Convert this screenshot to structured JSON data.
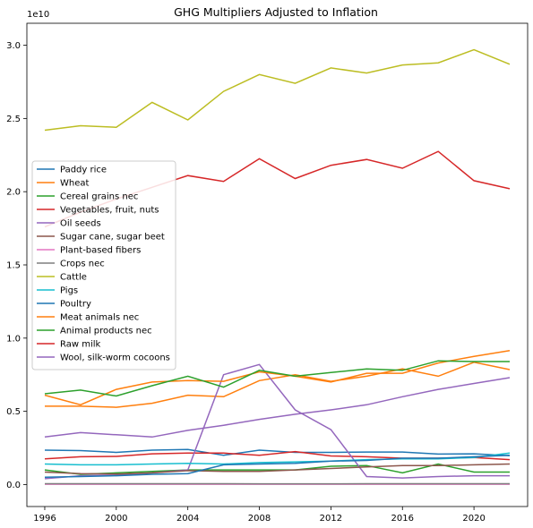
{
  "chart_data": {
    "type": "line",
    "title": "GHG Multipliers Adjusted to Inflation",
    "xlabel": "",
    "ylabel": "",
    "offset_label": "1e10",
    "xlim": [
      1995,
      2023
    ],
    "ylim": [
      -0.15,
      3.15
    ],
    "x_ticks": [
      1996,
      2000,
      2004,
      2008,
      2012,
      2016,
      2020
    ],
    "y_ticks": [
      0.0,
      0.5,
      1.0,
      1.5,
      2.0,
      2.5,
      3.0
    ],
    "y_tick_labels": [
      "0.0",
      "0.5",
      "1.0",
      "1.5",
      "2.0",
      "2.5",
      "3.0"
    ],
    "grid": false,
    "legend_position": "center-left",
    "x": [
      1996,
      1998,
      2000,
      2002,
      2004,
      2006,
      2008,
      2010,
      2012,
      2014,
      2016,
      2018,
      2020,
      2022
    ],
    "series": [
      {
        "name": "Paddy rice",
        "color": "#1f77b4",
        "values": [
          0.235,
          0.232,
          0.22,
          0.235,
          0.24,
          0.2,
          0.235,
          0.22,
          0.22,
          0.222,
          0.222,
          0.208,
          0.21,
          0.198
        ]
      },
      {
        "name": "Wheat",
        "color": "#ff7f0e",
        "values": [
          0.535,
          0.535,
          0.528,
          0.555,
          0.61,
          0.6,
          0.71,
          0.75,
          0.705,
          0.74,
          0.79,
          0.74,
          0.835,
          0.785
        ]
      },
      {
        "name": "Cereal grains nec",
        "color": "#2ca02c",
        "values": [
          0.1,
          0.07,
          0.08,
          0.09,
          0.1,
          0.1,
          0.1,
          0.1,
          0.125,
          0.13,
          0.08,
          0.14,
          0.085,
          0.085
        ]
      },
      {
        "name": "Vegetables, fruit, nuts",
        "color": "#d62728",
        "values": [
          0.175,
          0.19,
          0.192,
          0.21,
          0.215,
          0.215,
          0.2,
          0.225,
          0.195,
          0.19,
          0.18,
          0.18,
          0.185,
          0.17
        ]
      },
      {
        "name": "Oil seeds",
        "color": "#9467bd",
        "values": [
          0.04,
          0.06,
          0.065,
          0.08,
          0.1,
          0.75,
          0.82,
          0.51,
          0.375,
          0.055,
          0.045,
          0.055,
          0.06,
          0.06
        ]
      },
      {
        "name": "Sugar cane, sugar beet",
        "color": "#8c564b",
        "values": [
          0.085,
          0.075,
          0.072,
          0.08,
          0.095,
          0.09,
          0.09,
          0.1,
          0.11,
          0.12,
          0.13,
          0.13,
          0.135,
          0.14
        ]
      },
      {
        "name": "Plant-based fibers",
        "color": "#e377c2",
        "values": [
          0.002,
          0.002,
          0.002,
          0.002,
          0.002,
          0.002,
          0.002,
          0.002,
          0.002,
          0.002,
          0.002,
          0.002,
          0.002,
          0.002
        ]
      },
      {
        "name": "Crops nec",
        "color": "#7f7f7f",
        "values": [
          0.006,
          0.006,
          0.006,
          0.006,
          0.006,
          0.006,
          0.005,
          0.005,
          0.005,
          0.006,
          0.006,
          0.006,
          0.006,
          0.006
        ]
      },
      {
        "name": "Cattle",
        "color": "#bcbd22",
        "values": [
          2.42,
          2.45,
          2.44,
          2.61,
          2.49,
          2.685,
          2.8,
          2.74,
          2.845,
          2.81,
          2.865,
          2.88,
          2.97,
          2.87
        ]
      },
      {
        "name": "Pigs",
        "color": "#17becf",
        "values": [
          0.14,
          0.135,
          0.135,
          0.14,
          0.145,
          0.14,
          0.15,
          0.155,
          0.16,
          0.17,
          0.175,
          0.175,
          0.185,
          0.215
        ]
      },
      {
        "name": "Poultry",
        "color": "#1f77b4",
        "values": [
          0.05,
          0.055,
          0.06,
          0.07,
          0.075,
          0.135,
          0.14,
          0.145,
          0.16,
          0.165,
          0.18,
          0.18,
          0.19,
          0.2
        ]
      },
      {
        "name": "Meat animals nec",
        "color": "#ff7f0e",
        "values": [
          0.61,
          0.545,
          0.65,
          0.7,
          0.71,
          0.705,
          0.77,
          0.74,
          0.7,
          0.76,
          0.76,
          0.83,
          0.875,
          0.915
        ]
      },
      {
        "name": "Animal products nec",
        "color": "#2ca02c",
        "values": [
          0.62,
          0.645,
          0.605,
          0.675,
          0.74,
          0.665,
          0.78,
          0.74,
          0.765,
          0.79,
          0.78,
          0.845,
          0.84,
          0.84
        ]
      },
      {
        "name": "Raw milk",
        "color": "#d62728",
        "values": [
          1.76,
          1.86,
          1.95,
          2.03,
          2.11,
          2.07,
          2.225,
          2.09,
          2.18,
          2.22,
          2.16,
          2.275,
          2.075,
          2.02
        ]
      },
      {
        "name": "Wool, silk-worm cocoons",
        "color": "#9467bd",
        "values": [
          0.325,
          0.355,
          0.34,
          0.325,
          0.37,
          0.405,
          0.445,
          0.48,
          0.51,
          0.545,
          0.6,
          0.65,
          0.69,
          0.73
        ]
      }
    ]
  }
}
